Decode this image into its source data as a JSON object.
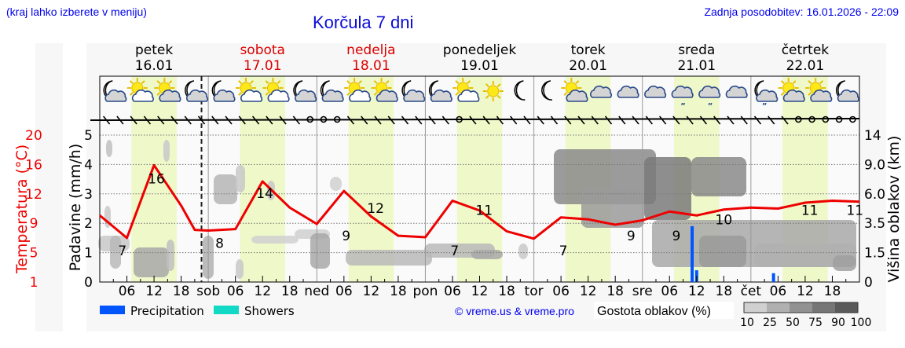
{
  "header": {
    "hint": "(kraj lahko izberete v meniju)",
    "title": "Korčula 7 dni",
    "updated": "Zadnja posodobitev: 16.01.2026 - 22:09"
  },
  "days": [
    {
      "name": "petek",
      "date": "16.01",
      "weekend": false
    },
    {
      "name": "sobota",
      "date": "17.01",
      "weekend": true
    },
    {
      "name": "nedelja",
      "date": "18.01",
      "weekend": true
    },
    {
      "name": "ponedeljek",
      "date": "19.01",
      "weekend": false
    },
    {
      "name": "torek",
      "date": "20.01",
      "weekend": false
    },
    {
      "name": "sreda",
      "date": "21.01",
      "weekend": false
    },
    {
      "name": "četrtek",
      "date": "22.01",
      "weekend": false
    }
  ],
  "day_abbr": [
    "",
    "sob",
    "ned",
    "pon",
    "tor",
    "sre",
    "čet"
  ],
  "hour_ticks": [
    "06",
    "12",
    "18"
  ],
  "icons": [
    "moon-cloud",
    "sun-cloud",
    "sun-cloud-grey",
    "moon-cloud",
    "moon-cloud",
    "sun-cloud",
    "sun-cloud",
    "moon-cloud",
    "moon-cloud",
    "sun-cloud",
    "sun-cloud-grey",
    "moon-cloud",
    "moon-cloud",
    "sun-cloud",
    "sun",
    "moon",
    "moon",
    "sun-cloud-grey",
    "cloud",
    "cloud",
    "cloud",
    "cloud-drizzle",
    "cloud-drizzle",
    "cloud",
    "moon-cloud-drizzle",
    "sun-cloud-grey",
    "sun-cloud-grey",
    "moon-cloud"
  ],
  "axes": {
    "left_temp_label": "Temperatura (°C)",
    "left_temp_ticks": [
      "1",
      "5",
      "9",
      "12",
      "16",
      "20"
    ],
    "left_precip_label": "Padavine (mm/h)",
    "left_precip_ticks": [
      "0",
      "1",
      "2",
      "3",
      "4",
      "5"
    ],
    "right_label": "Višina oblakov (km)",
    "right_ticks": [
      "0",
      "1.5",
      "3.5",
      "6.0",
      "9.0",
      "14"
    ]
  },
  "legend": {
    "precipitation": "Precipitation",
    "showers": "Showers",
    "precipitation_color": "#0055ff",
    "showers_color": "#11d9c6",
    "credit": "© vreme.us & vreme.pro",
    "cloud_density_label": "Gostota oblakov (%)",
    "cloud_density_ticks": [
      "10",
      "25",
      "50",
      "75",
      "90",
      "100"
    ],
    "cloud_density_colors": [
      "#d0d0d0",
      "#b0b0b0",
      "#929292",
      "#767676",
      "#5a5a5a"
    ]
  },
  "chart_data": {
    "type": "line",
    "title": "Korčula 7 dni",
    "xlabel": "",
    "ylabel": "Padavine (mm/h) / Temperatura (°C)",
    "y2label": "Višina oblakov (km)",
    "ylim": [
      0,
      5
    ],
    "x_unit": "hours from 16.01 00:00",
    "series": [
      {
        "name": "Temperatura (°C)",
        "color": "#ee0000",
        "x": [
          0,
          6,
          12,
          18,
          21,
          24,
          30,
          36,
          42,
          48,
          54,
          60,
          66,
          72,
          78,
          84,
          90,
          96,
          102,
          108,
          114,
          120,
          126,
          132,
          138,
          144,
          150,
          156,
          162,
          168
        ],
        "values": [
          9.8,
          7.0,
          15.9,
          10.8,
          8.1,
          8.0,
          8.2,
          13.7,
          10.6,
          8.9,
          12.4,
          9.7,
          7.3,
          7.1,
          11.3,
          10.3,
          7.9,
          6.9,
          9.6,
          9.4,
          8.8,
          9.3,
          10.2,
          9.8,
          10.4,
          10.6,
          10.5,
          11.1,
          11.3,
          11.2
        ]
      },
      {
        "name": "Precipitation (mm/h)",
        "color": "#0055ff",
        "x": [
          131,
          132,
          149
        ],
        "values": [
          1.9,
          0.4,
          0.3
        ]
      }
    ],
    "labels": [
      {
        "x": 5,
        "text": "7"
      },
      {
        "x": 12.5,
        "text": "16"
      },
      {
        "x": 26.5,
        "text": "8"
      },
      {
        "x": 36.5,
        "text": "14"
      },
      {
        "x": 54.5,
        "text": "9"
      },
      {
        "x": 61,
        "text": "12"
      },
      {
        "x": 78.5,
        "text": "7"
      },
      {
        "x": 85,
        "text": "11"
      },
      {
        "x": 102.5,
        "text": "7"
      },
      {
        "x": 117.5,
        "text": "9"
      },
      {
        "x": 127.5,
        "text": "9"
      },
      {
        "x": 138,
        "text": "10"
      },
      {
        "x": 157,
        "text": "11"
      },
      {
        "x": 167,
        "text": "11"
      }
    ],
    "daylight_hours": [
      7,
      17
    ],
    "now_marker_hour": 22.5
  }
}
